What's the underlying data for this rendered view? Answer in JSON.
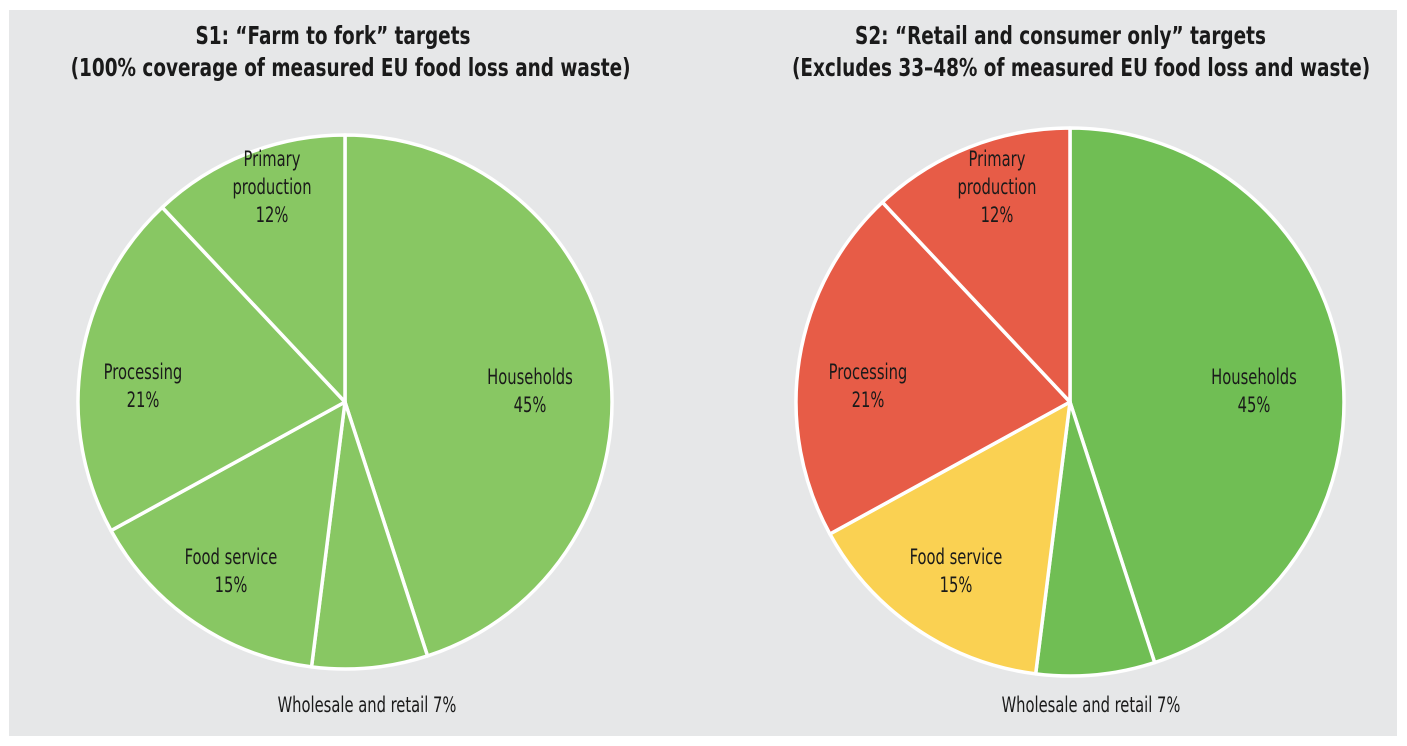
{
  "chart_data": [
    {
      "type": "pie",
      "title_lines": [
        "S1: “Farm to fork” targets",
        "(100% coverage of measured EU food loss and waste)"
      ],
      "slices": [
        {
          "name": "Households",
          "value": 45,
          "label_lines": [
            "Households",
            "45%"
          ],
          "color": "#88c763"
        },
        {
          "name": "Wholesale and retail",
          "value": 7,
          "label_lines": [
            "Wholesale and retail 7%"
          ],
          "color": "#88c763"
        },
        {
          "name": "Food service",
          "value": 15,
          "label_lines": [
            "Food service",
            "15%"
          ],
          "color": "#88c763"
        },
        {
          "name": "Processing",
          "value": 21,
          "label_lines": [
            "Processing",
            "21%"
          ],
          "color": "#88c763"
        },
        {
          "name": "Primary production",
          "value": 12,
          "label_lines": [
            "Primary",
            "production",
            "12%"
          ],
          "color": "#88c763"
        }
      ]
    },
    {
      "type": "pie",
      "title_lines": [
        "S2: “Retail and consumer only” targets",
        "(Excludes 33–48% of measured EU food loss and waste)"
      ],
      "slices": [
        {
          "name": "Households",
          "value": 45,
          "label_lines": [
            "Households",
            "45%"
          ],
          "color": "#70be54"
        },
        {
          "name": "Wholesale and retail",
          "value": 7,
          "label_lines": [
            "Wholesale and retail 7%"
          ],
          "color": "#70be54"
        },
        {
          "name": "Food service",
          "value": 15,
          "label_lines": [
            "Food service",
            "15%"
          ],
          "color": "#fad152"
        },
        {
          "name": "Processing",
          "value": 21,
          "label_lines": [
            "Processing",
            "21%"
          ],
          "color": "#e75c47"
        },
        {
          "name": "Primary production",
          "value": 12,
          "label_lines": [
            "Primary",
            "production",
            "12%"
          ],
          "color": "#e75c47"
        }
      ]
    }
  ]
}
